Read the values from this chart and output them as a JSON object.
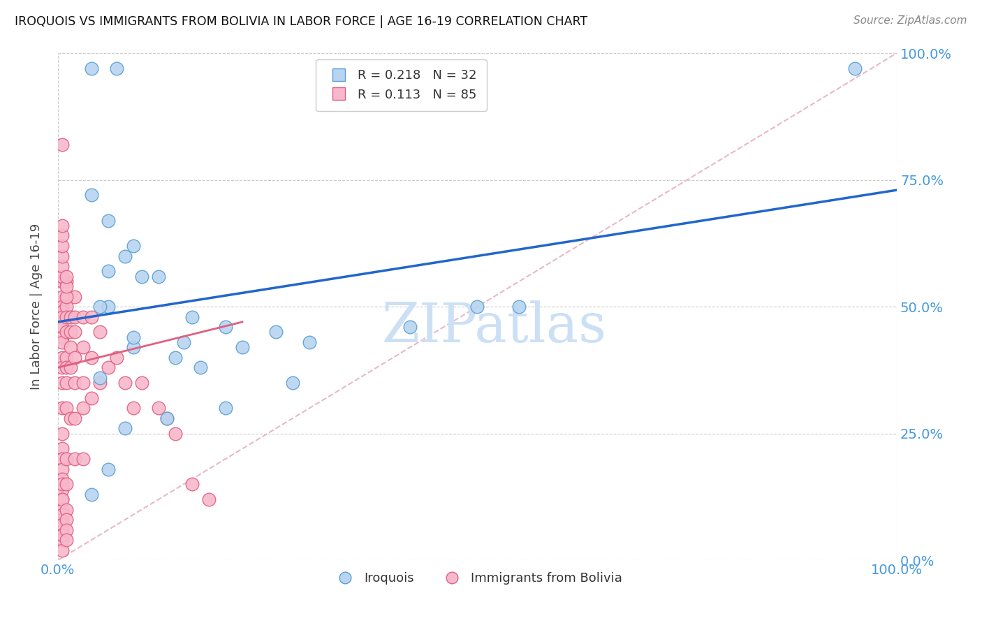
{
  "title": "IROQUOIS VS IMMIGRANTS FROM BOLIVIA IN LABOR FORCE | AGE 16-19 CORRELATION CHART",
  "source": "Source: ZipAtlas.com",
  "ylabel": "In Labor Force | Age 16-19",
  "xlim": [
    0,
    1
  ],
  "ylim": [
    0,
    1
  ],
  "ytick_values": [
    0,
    0.25,
    0.5,
    0.75,
    1.0
  ],
  "xtick_values": [
    0,
    1.0
  ],
  "series_iroquois": {
    "name": "Iroquois",
    "color": "#b8d4f0",
    "edge_color": "#5a9fd4",
    "trend_color": "#2266cc",
    "trend_start_x": 0.0,
    "trend_start_y": 0.47,
    "trend_end_x": 1.0,
    "trend_end_y": 0.73,
    "R": 0.218,
    "N": 32,
    "x": [
      0.04,
      0.07,
      0.04,
      0.06,
      0.08,
      0.12,
      0.09,
      0.06,
      0.1,
      0.16,
      0.2,
      0.26,
      0.15,
      0.3,
      0.42,
      0.5,
      0.09,
      0.14,
      0.09,
      0.06,
      0.05,
      0.17,
      0.22,
      0.95,
      0.55,
      0.05,
      0.2,
      0.28,
      0.13,
      0.08,
      0.06,
      0.04
    ],
    "y": [
      0.97,
      0.97,
      0.72,
      0.67,
      0.6,
      0.56,
      0.62,
      0.57,
      0.56,
      0.48,
      0.46,
      0.45,
      0.43,
      0.43,
      0.46,
      0.5,
      0.42,
      0.4,
      0.44,
      0.5,
      0.5,
      0.38,
      0.42,
      0.97,
      0.5,
      0.36,
      0.3,
      0.35,
      0.28,
      0.26,
      0.18,
      0.13
    ]
  },
  "series_bolivia": {
    "name": "Immigrants from Bolivia",
    "color": "#f8b8cc",
    "edge_color": "#e06080",
    "trend_color": "#e06080",
    "trend_start_x": 0.0,
    "trend_start_y": 0.38,
    "trend_end_x": 0.22,
    "trend_end_y": 0.47,
    "R": 0.113,
    "N": 85,
    "x": [
      0.005,
      0.005,
      0.005,
      0.005,
      0.005,
      0.005,
      0.005,
      0.005,
      0.005,
      0.005,
      0.005,
      0.005,
      0.005,
      0.005,
      0.005,
      0.005,
      0.005,
      0.005,
      0.005,
      0.005,
      0.005,
      0.005,
      0.005,
      0.005,
      0.005,
      0.005,
      0.005,
      0.005,
      0.005,
      0.005,
      0.01,
      0.01,
      0.01,
      0.01,
      0.01,
      0.01,
      0.01,
      0.01,
      0.01,
      0.01,
      0.01,
      0.01,
      0.01,
      0.01,
      0.015,
      0.015,
      0.015,
      0.015,
      0.015,
      0.02,
      0.02,
      0.02,
      0.02,
      0.02,
      0.02,
      0.02,
      0.03,
      0.03,
      0.03,
      0.03,
      0.03,
      0.04,
      0.04,
      0.04,
      0.05,
      0.05,
      0.06,
      0.07,
      0.08,
      0.09,
      0.1,
      0.12,
      0.13,
      0.14,
      0.16,
      0.18,
      0.005,
      0.005,
      0.005,
      0.01,
      0.01,
      0.01,
      0.005,
      0.005,
      0.005
    ],
    "y": [
      0.82,
      0.55,
      0.52,
      0.5,
      0.49,
      0.48,
      0.46,
      0.44,
      0.43,
      0.4,
      0.38,
      0.35,
      0.3,
      0.25,
      0.22,
      0.2,
      0.18,
      0.16,
      0.14,
      0.12,
      0.1,
      0.08,
      0.06,
      0.04,
      0.02,
      0.15,
      0.12,
      0.09,
      0.07,
      0.05,
      0.55,
      0.5,
      0.48,
      0.45,
      0.4,
      0.38,
      0.35,
      0.3,
      0.2,
      0.15,
      0.1,
      0.08,
      0.06,
      0.04,
      0.48,
      0.45,
      0.42,
      0.38,
      0.28,
      0.52,
      0.48,
      0.45,
      0.4,
      0.35,
      0.28,
      0.2,
      0.48,
      0.42,
      0.35,
      0.3,
      0.2,
      0.48,
      0.4,
      0.32,
      0.45,
      0.35,
      0.38,
      0.4,
      0.35,
      0.3,
      0.35,
      0.3,
      0.28,
      0.25,
      0.15,
      0.12,
      0.56,
      0.58,
      0.6,
      0.52,
      0.54,
      0.56,
      0.62,
      0.64,
      0.66
    ]
  },
  "bg_color": "#ffffff",
  "grid_color": "#cccccc",
  "diag_color": "#e8b8c8",
  "tick_label_color": "#4499dd",
  "title_color": "#111111",
  "watermark": "ZIPatlas",
  "watermark_color": "#cce0f5"
}
